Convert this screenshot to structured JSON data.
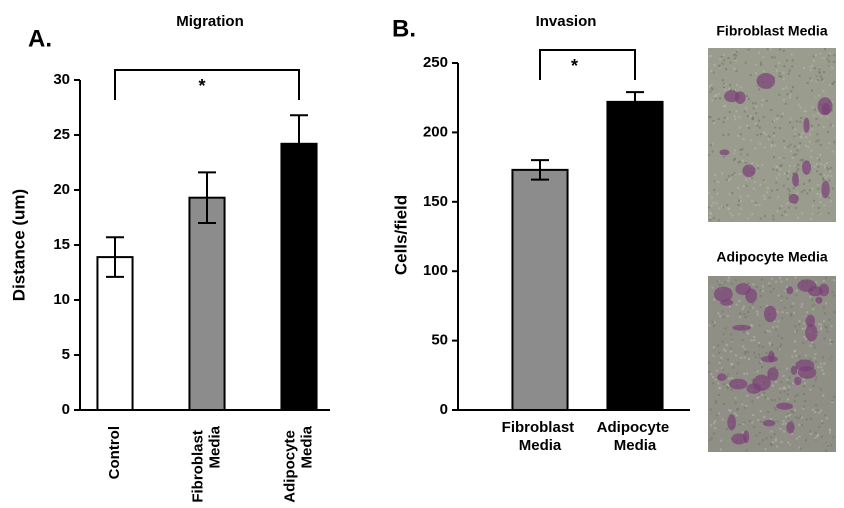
{
  "panel_labels": [
    "A.",
    "B."
  ],
  "images": [
    {
      "label": "Fibroblast Media"
    },
    {
      "label": "Adipocyte Media"
    }
  ],
  "chart_data": [
    {
      "type": "bar",
      "title": "Migration",
      "y_label": "Distance (um)",
      "categories": [
        "Control",
        "Fibroblast Media",
        "Adipocyte Media"
      ],
      "values": [
        13.9,
        19.3,
        24.2
      ],
      "errors": [
        1.8,
        2.3,
        2.6
      ],
      "colors": [
        "#ffffff",
        "#8c8c8c",
        "#000000"
      ],
      "ylim": [
        0,
        30
      ],
      "yticks": [
        0,
        5,
        10,
        15,
        20,
        25,
        30
      ],
      "annotation": "*"
    },
    {
      "type": "bar",
      "title": "Invasion",
      "y_label": "Cells/field",
      "categories": [
        "Fibroblast Media",
        "Adipocyte Media"
      ],
      "values": [
        173,
        222
      ],
      "errors": [
        7,
        7
      ],
      "colors": [
        "#8c8c8c",
        "#000000"
      ],
      "ylim": [
        0,
        250
      ],
      "yticks": [
        0,
        50,
        100,
        150,
        200,
        250
      ],
      "annotation": "*"
    }
  ]
}
